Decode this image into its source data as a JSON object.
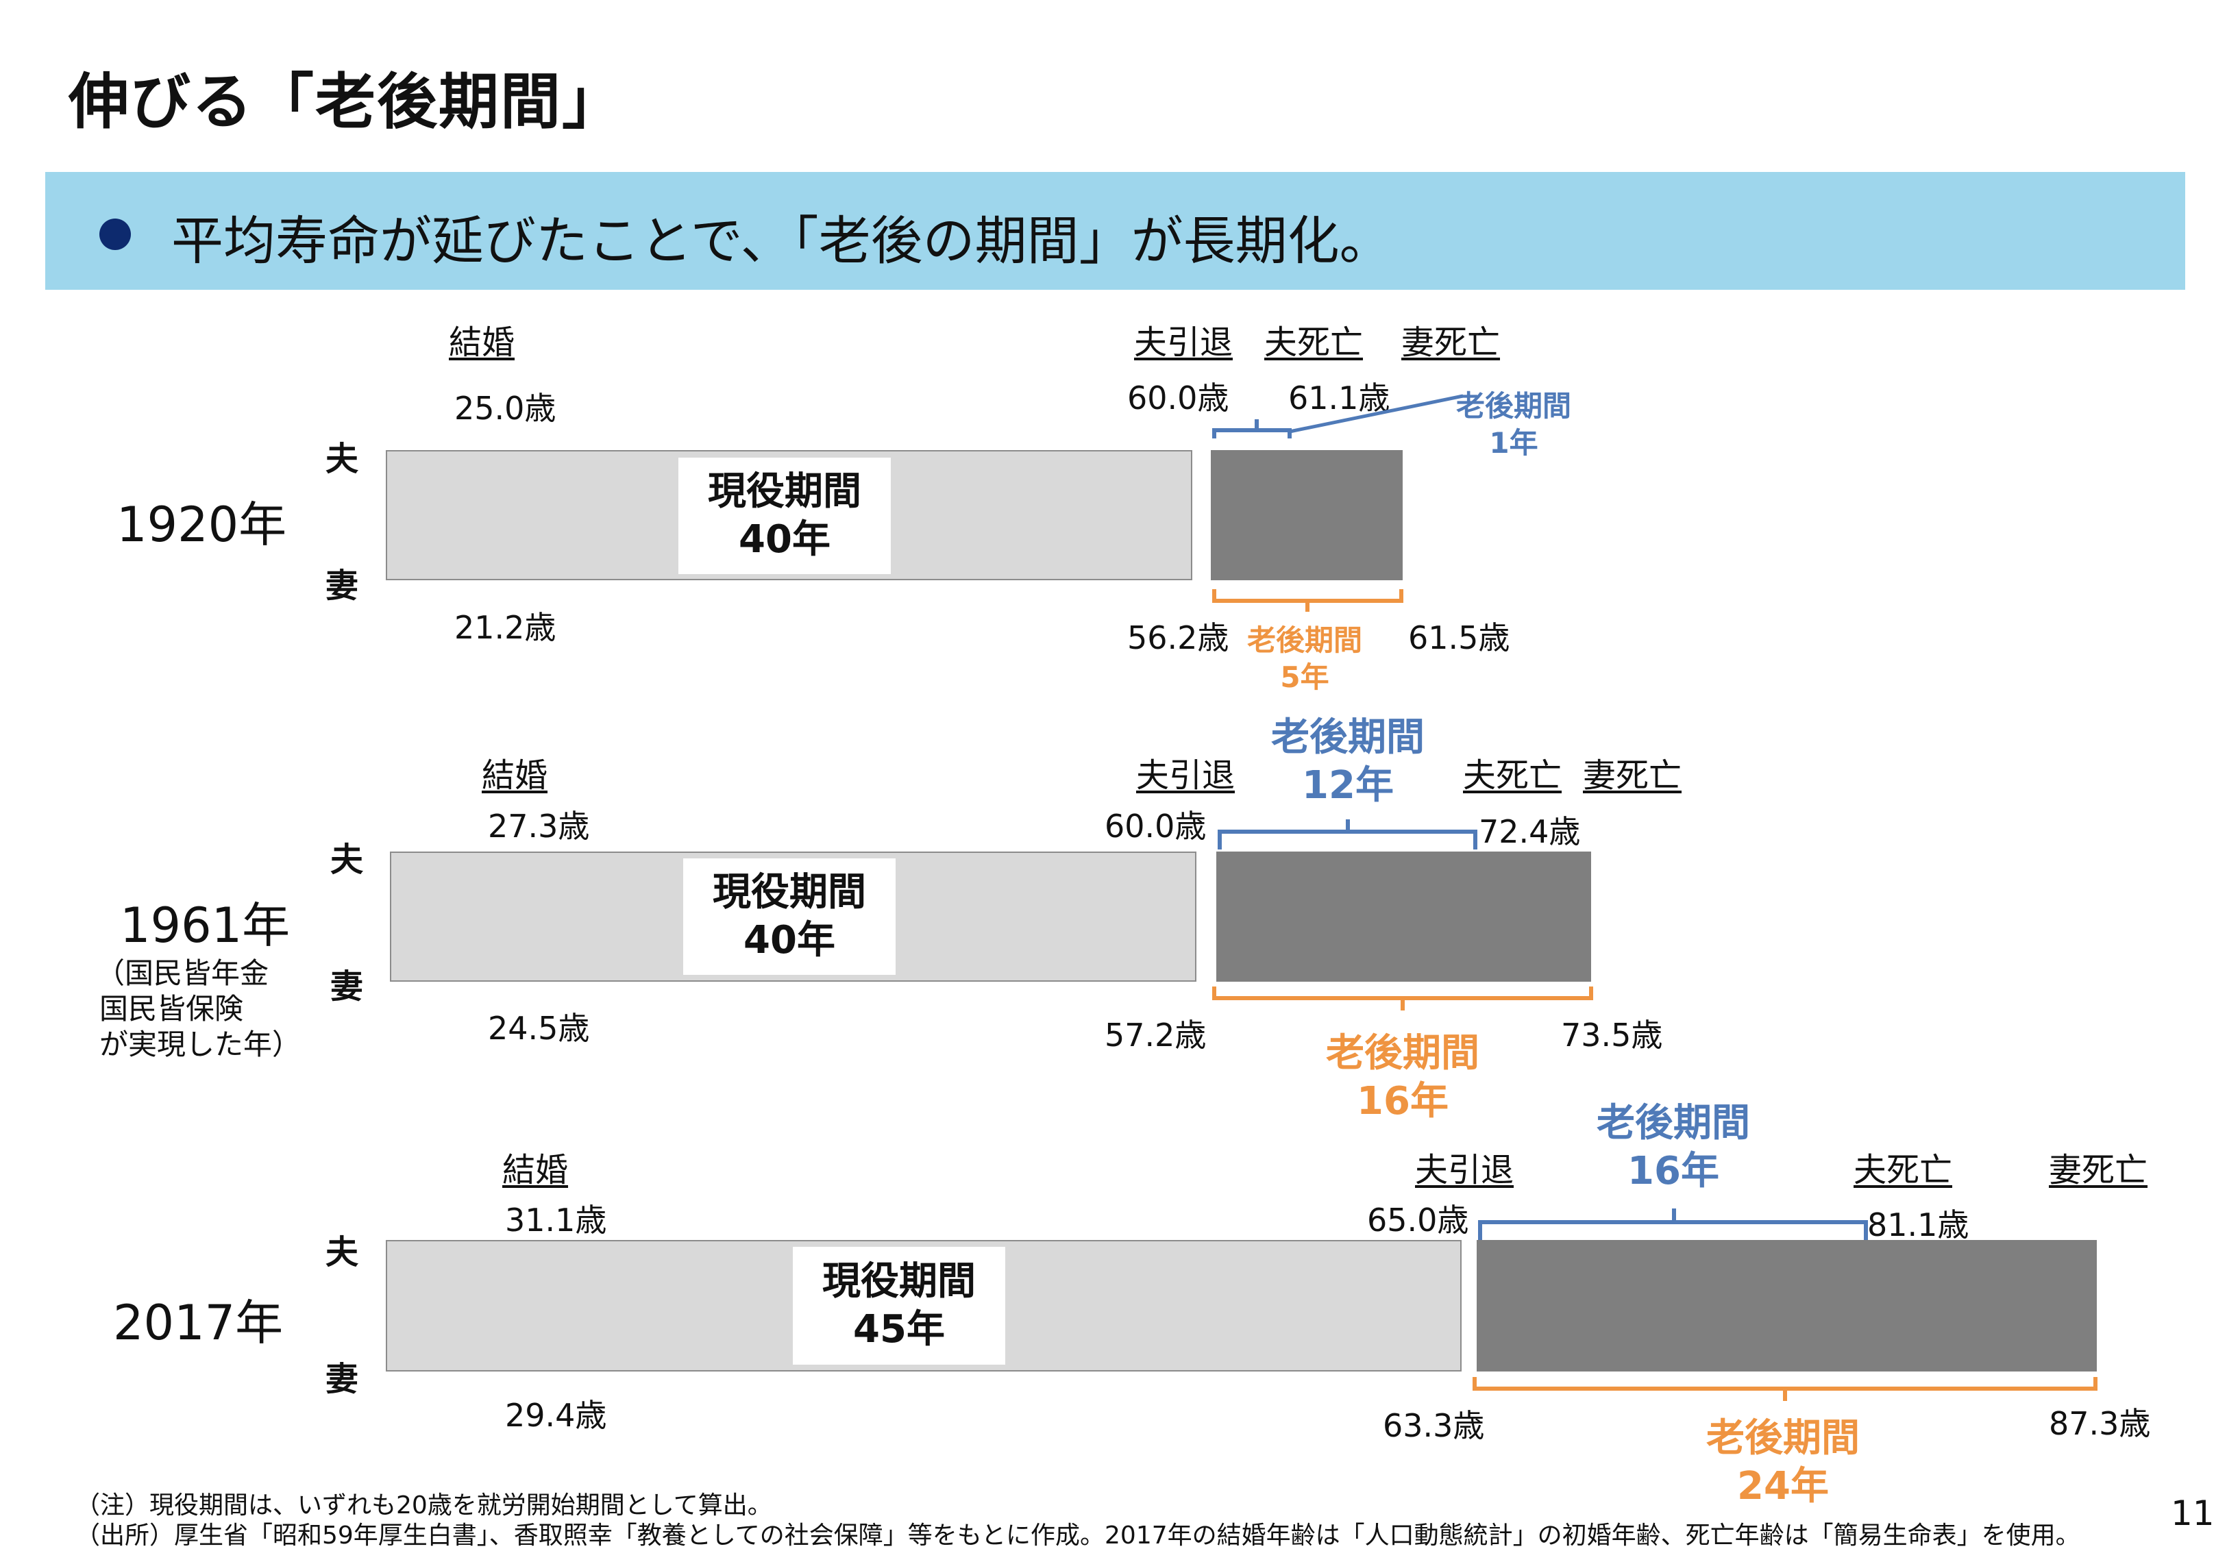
{
  "title": "伸びる「老後期間」",
  "banner": {
    "text": "平均寿命が延びたことで、「老後の期間」が長期化。"
  },
  "labels": {
    "husband": "夫",
    "wife": "妻",
    "marriage": "結婚",
    "husband_retire": "夫引退",
    "husband_death": "夫死亡",
    "wife_death": "妻死亡"
  },
  "rows": [
    {
      "year": "1920年",
      "husband_marriage_age": "25.0歳",
      "wife_marriage_age": "21.2歳",
      "husband_retire_age": "60.0歳",
      "wife_retire_age": "56.2歳",
      "husband_death_age": "61.1歳",
      "wife_death_age": "61.5歳",
      "work_period_label": "現役期間",
      "work_period_years": "40年",
      "husband_retire_label": "老後期間",
      "husband_retire_years": "1年",
      "wife_retire_label": "老後期間",
      "wife_retire_years": "5年"
    },
    {
      "year": "1961年",
      "note": [
        "（国民皆年金",
        "国民皆保険",
        "が実現した年）"
      ],
      "husband_marriage_age": "27.3歳",
      "wife_marriage_age": "24.5歳",
      "husband_retire_age": "60.0歳",
      "wife_retire_age": "57.2歳",
      "husband_death_age": "72.4歳",
      "wife_death_age": "73.5歳",
      "work_period_label": "現役期間",
      "work_period_years": "40年",
      "husband_retire_label": "老後期間",
      "husband_retire_years": "12年",
      "wife_retire_label": "老後期間",
      "wife_retire_years": "16年"
    },
    {
      "year": "2017年",
      "husband_marriage_age": "31.1歳",
      "wife_marriage_age": "29.4歳",
      "husband_retire_age": "65.0歳",
      "wife_retire_age": "63.3歳",
      "husband_death_age": "81.1歳",
      "wife_death_age": "87.3歳",
      "work_period_label": "現役期間",
      "work_period_years": "45年",
      "husband_retire_label": "老後期間",
      "husband_retire_years": "16年",
      "wife_retire_label": "老後期間",
      "wife_retire_years": "24年"
    }
  ],
  "footnotes": {
    "note": "（注）現役期間は、いずれも20歳を就労開始期間として算出。",
    "source": "（出所）厚生省「昭和59年厚生白書」、香取照幸「教養としての社会保障」等をもとに作成。2017年の結婚年齢は「人口動態統計」の初婚年齢、死亡年齢は「簡易生命表」を使用。"
  },
  "page_number": "11",
  "colors": {
    "banner": "#9ed6ec",
    "bullet": "#0d2a6e",
    "work_bar": "#d9d9d9",
    "retire_bar": "#7f7f7f",
    "husband_bracket": "#4f7ab8",
    "wife_bracket": "#ef9441"
  }
}
